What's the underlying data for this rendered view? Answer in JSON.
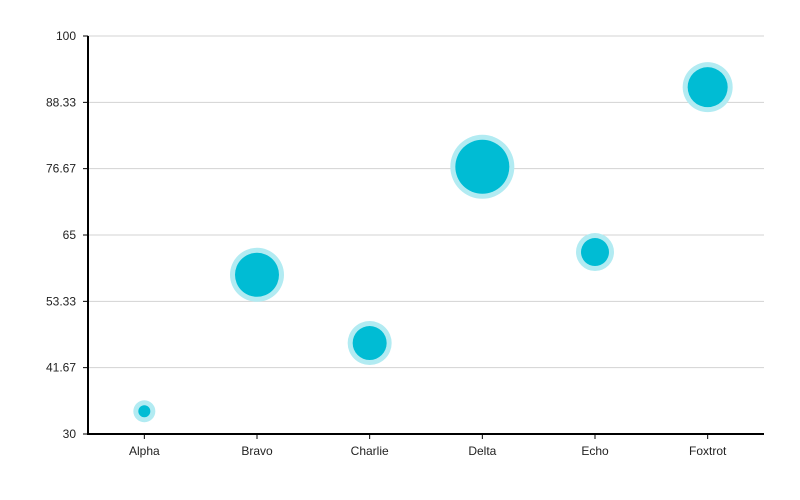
{
  "chart_data": {
    "type": "scatter",
    "title": "",
    "xlabel": "",
    "ylabel": "",
    "categories": [
      "Alpha",
      "Bravo",
      "Charlie",
      "Delta",
      "Echo",
      "Foxtrot"
    ],
    "values": [
      34,
      58,
      46,
      77,
      62,
      91
    ],
    "sizes": [
      6,
      22,
      17,
      27,
      14,
      20
    ],
    "ylim": [
      30,
      100
    ],
    "yticks": [
      "30",
      "41.67",
      "53.33",
      "65",
      "76.67",
      "88.33",
      "100"
    ],
    "grid": true,
    "legend": "none",
    "colors": {
      "bubble": "#00bcd4",
      "bubble_halo": "#b2ebf2",
      "grid": "#d3d3d3",
      "axis": "#000000"
    }
  }
}
